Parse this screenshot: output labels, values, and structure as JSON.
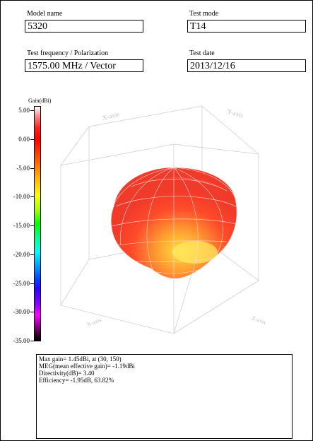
{
  "fields": {
    "model_name_label": "Model name",
    "model_name_value": "5320",
    "test_mode_label": "Test mode",
    "test_mode_value": "T14",
    "freq_label": "Test frequency / Polarization",
    "freq_value": "1575.00 MHz / Vector",
    "date_label": "Test date",
    "date_value": "2013/12/16"
  },
  "colorbar": {
    "title": "Gain(dBi)",
    "ticks": [
      "5.00",
      "0.00",
      "-5.00",
      "-10.00",
      "-15.00",
      "-20.00",
      "-25.00",
      "-30.00",
      "-35.00"
    ]
  },
  "plot": {
    "x_axis": "X-axis",
    "y_axis": "Y-axis",
    "z_axis": "Z-axis",
    "x_axis_bottom": "X-axis",
    "colors": {
      "lobe_main": "#ff4030",
      "lobe_hot": "#ffd020",
      "grid": "#cfcfcf",
      "mesh": "#ffdede"
    }
  },
  "summary": {
    "line1": "Max gain= 1.45dBi, at (30, 150)",
    "line2": "MEG(mean effective gain)= -1.19dBi",
    "line3": "Directivity(dB)= 3.40",
    "line4": "Efficiency= -1.95dB, 63.82%"
  }
}
